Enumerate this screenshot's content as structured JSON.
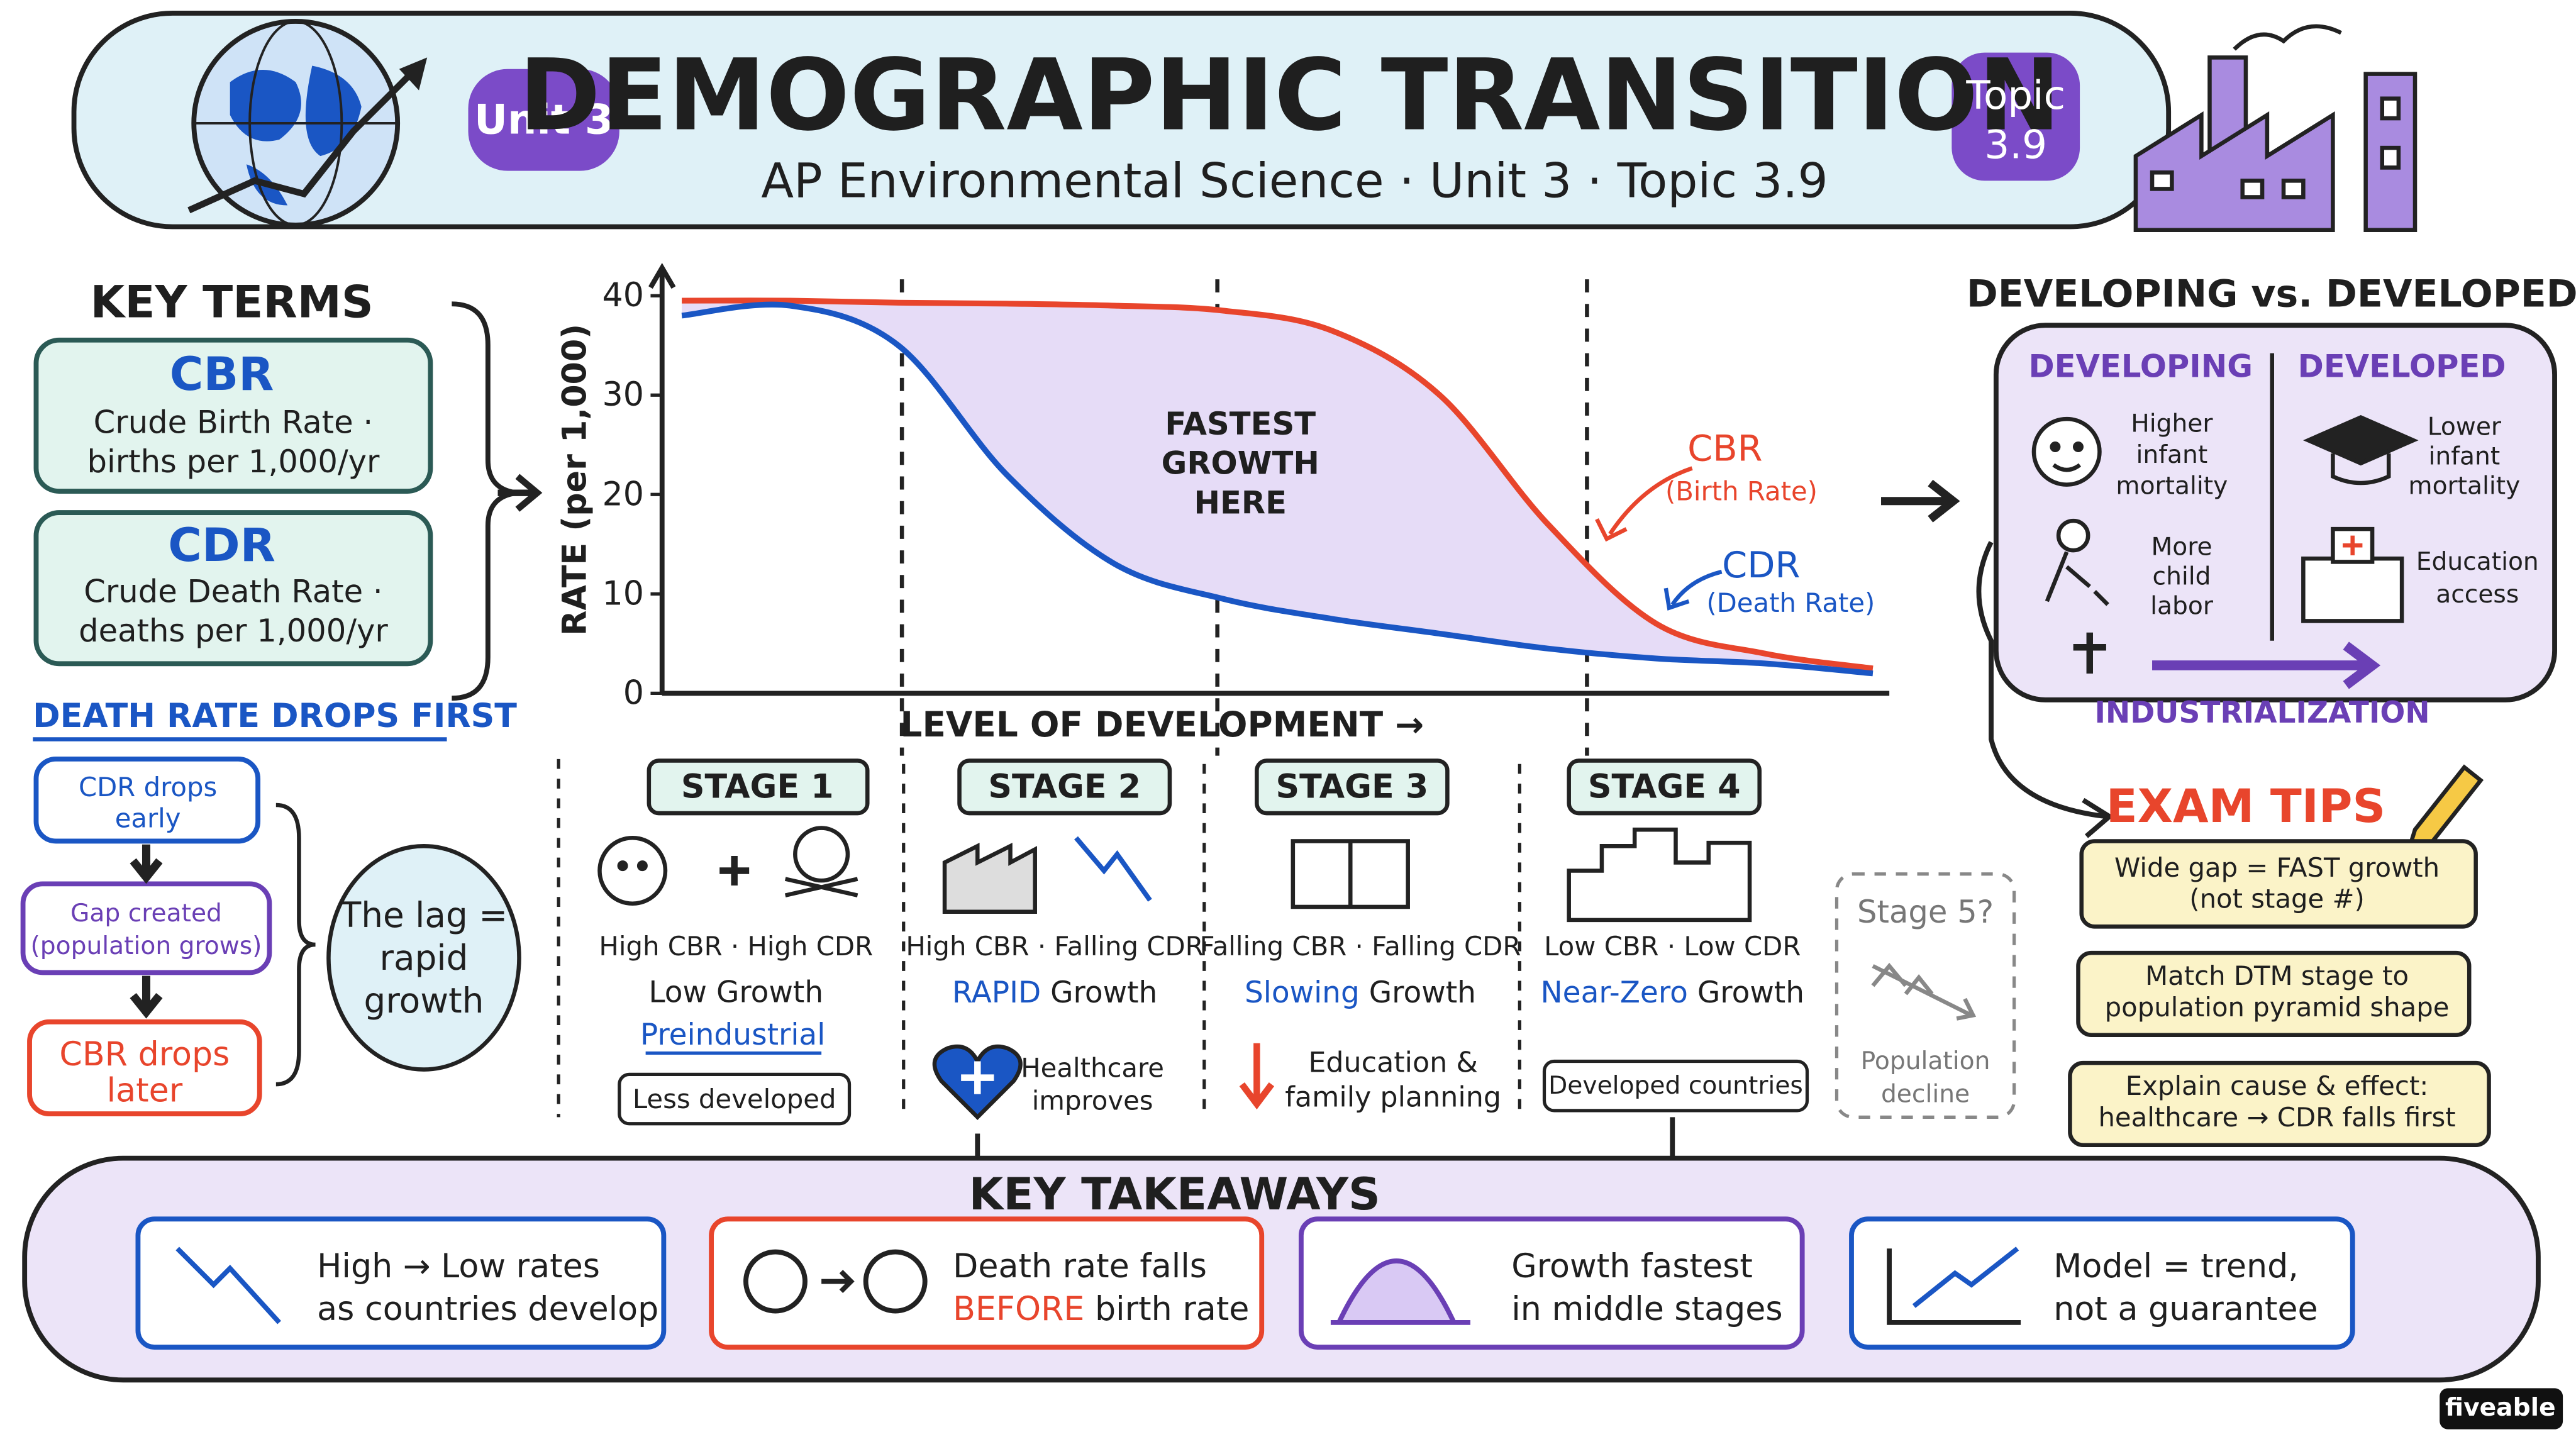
{
  "header": {
    "unit_badge": "Unit 3",
    "title": "DEMOGRAPHIC TRANSITION",
    "subtitle": "AP Environmental Science · Unit 3 · Topic 3.9",
    "topic_badge": [
      "Topic",
      "3.9"
    ]
  },
  "key_terms": {
    "heading": "KEY TERMS",
    "terms": [
      {
        "abbr": "CBR",
        "lines": [
          "Crude Birth Rate ·",
          "births per 1,000/yr"
        ]
      },
      {
        "abbr": "CDR",
        "lines": [
          "Crude Death Rate ·",
          "deaths per 1,000/yr"
        ]
      }
    ],
    "note": "DEATH RATE DROPS FIRST",
    "flow": [
      [
        "CDR drops",
        "early"
      ],
      [
        "Gap created",
        "(population grows)"
      ],
      [
        "CBR drops",
        "later"
      ]
    ],
    "lag_note": [
      "The lag =",
      "rapid",
      "growth"
    ]
  },
  "chart_data": {
    "type": "line",
    "y_label": "RATE (per 1,000)",
    "x_label": "LEVEL OF DEVELOPMENT →",
    "annotation": [
      "FASTEST",
      "GROWTH",
      "HERE"
    ],
    "categories": [
      null,
      null,
      null,
      null,
      null,
      null,
      null,
      null,
      null,
      null,
      null,
      null
    ],
    "series": [
      {
        "name": "CBR",
        "description": "(Birth Rate)",
        "color": "#e8452c",
        "values": [
          39.5,
          39.5,
          39.3,
          39.2,
          39,
          38.5,
          36.5,
          30,
          17,
          7,
          4,
          2.5
        ]
      },
      {
        "name": "CDR",
        "description": "(Death Rate)",
        "color": "#1a56c4",
        "values": [
          38,
          39,
          35,
          22,
          13,
          9.5,
          7.5,
          6,
          4.5,
          3.5,
          3,
          2
        ]
      }
    ],
    "ylim": [
      0,
      40
    ],
    "yticks": [
      0,
      10,
      20,
      30,
      40
    ],
    "fill_color": "#e6dcf7"
  },
  "stages": [
    {
      "label": "STAGE 1",
      "rates": "High CBR · High CDR",
      "growth": [
        "Low Growth"
      ],
      "era": "Preindustrial",
      "tag": "Less developed"
    },
    {
      "label": "STAGE 2",
      "rates": "High CBR · Falling CDR",
      "growth": [
        "RAPID",
        " Growth"
      ],
      "note": [
        "Healthcare",
        "improves"
      ]
    },
    {
      "label": "STAGE 3",
      "rates": "Falling CBR · Falling CDR",
      "growth": [
        "Slowing",
        " Growth"
      ],
      "note": [
        "Education &",
        "family planning"
      ]
    },
    {
      "label": "STAGE 4",
      "rates": "Low CBR · Low CDR",
      "growth": [
        "Near-Zero",
        " Growth"
      ],
      "tag": "Developed countries"
    }
  ],
  "stage5": {
    "label": "Stage 5?",
    "note": [
      "Population",
      "decline"
    ]
  },
  "comparison": {
    "heading": "DEVELOPING vs. DEVELOPED",
    "developing": {
      "title": "DEVELOPING",
      "items": [
        [
          "Higher",
          "infant",
          "mortality"
        ],
        [
          "More",
          "child",
          "labor"
        ]
      ]
    },
    "developed": {
      "title": "DEVELOPED",
      "items": [
        [
          "Lower",
          "infant",
          "mortality"
        ],
        [
          "Education",
          "access"
        ]
      ]
    },
    "arrow_label": "INDUSTRIALIZATION"
  },
  "exam_tips": {
    "heading": "EXAM TIPS",
    "tips": [
      [
        "Wide gap = FAST growth",
        "(not stage #)"
      ],
      [
        "Match DTM stage to",
        "population pyramid shape"
      ],
      [
        "Explain cause & effect:",
        "healthcare → CDR falls first"
      ]
    ]
  },
  "takeaways": {
    "heading": "KEY TAKEAWAYS",
    "items": [
      [
        "High → Low rates",
        "as countries develop"
      ],
      [
        "Death rate falls",
        [
          "BEFORE",
          " birth rate"
        ]
      ],
      [
        "Growth fastest",
        "in middle stages"
      ],
      [
        "Model = trend,",
        "not a guarantee"
      ]
    ]
  },
  "brand": "fiveable"
}
